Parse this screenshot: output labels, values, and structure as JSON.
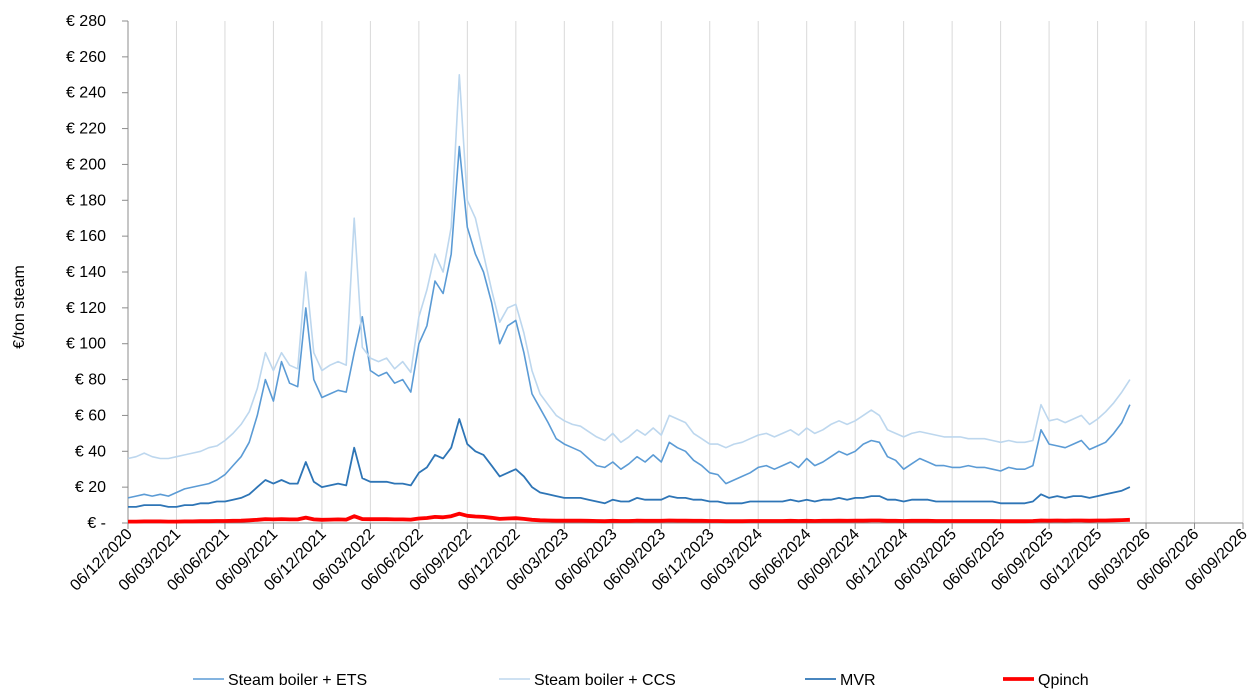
{
  "chart_data": {
    "type": "line",
    "title": "",
    "xlabel": "",
    "ylabel": "€/ton steam",
    "ylim": [
      0,
      280
    ],
    "y_ticks": [
      0,
      20,
      40,
      60,
      80,
      100,
      120,
      140,
      160,
      180,
      200,
      220,
      240,
      260,
      280
    ],
    "y_tick_labels": [
      "€ -",
      "€ 20",
      "€ 40",
      "€ 60",
      "€ 80",
      "€ 100",
      "€ 120",
      "€ 140",
      "€ 160",
      "€ 180",
      "€ 200",
      "€ 220",
      "€ 240",
      "€ 260",
      "€ 280"
    ],
    "x_tick_labels": [
      "06/12/2020",
      "06/03/2021",
      "06/06/2021",
      "06/09/2021",
      "06/12/2021",
      "06/03/2022",
      "06/06/2022",
      "06/09/2022",
      "06/12/2022",
      "06/03/2023",
      "06/06/2023",
      "06/09/2023",
      "06/12/2023",
      "06/03/2024",
      "06/06/2024",
      "06/09/2024",
      "06/12/2024",
      "06/03/2025",
      "06/06/2025",
      "06/09/2025",
      "06/12/2025",
      "06/03/2026",
      "06/06/2026",
      "06/09/2026"
    ],
    "grid": "vertical",
    "legend_position": "bottom",
    "x_step_months": 0.5,
    "series": [
      {
        "name": "Steam boiler + ETS",
        "color": "#5b9bd5",
        "width": 1.6,
        "values": [
          14,
          15,
          16,
          15,
          16,
          15,
          17,
          19,
          20,
          21,
          22,
          24,
          27,
          32,
          37,
          45,
          60,
          80,
          68,
          90,
          78,
          76,
          120,
          80,
          70,
          72,
          74,
          73,
          95,
          115,
          85,
          82,
          84,
          78,
          80,
          73,
          100,
          110,
          135,
          128,
          150,
          210,
          165,
          150,
          140,
          123,
          100,
          110,
          113,
          95,
          72,
          64,
          56,
          47,
          44,
          42,
          40,
          36,
          32,
          31,
          34,
          30,
          33,
          37,
          34,
          38,
          34,
          45,
          42,
          40,
          35,
          32,
          28,
          27,
          22,
          24,
          26,
          28,
          31,
          32,
          30,
          32,
          34,
          31,
          36,
          32,
          34,
          37,
          40,
          38,
          40,
          44,
          46,
          45,
          37,
          35,
          30,
          33,
          36,
          34,
          32,
          32,
          31,
          31,
          32,
          31,
          31,
          30,
          29,
          31,
          30,
          30,
          32,
          52,
          44,
          43,
          42,
          44,
          46,
          41,
          43,
          45,
          50,
          56,
          66
        ]
      },
      {
        "name": "Steam boiler + CCS",
        "color": "#bdd7ee",
        "width": 1.6,
        "values": [
          36,
          37,
          39,
          37,
          36,
          36,
          37,
          38,
          39,
          40,
          42,
          43,
          46,
          50,
          55,
          62,
          75,
          95,
          85,
          95,
          88,
          86,
          140,
          95,
          85,
          88,
          90,
          88,
          170,
          98,
          92,
          90,
          92,
          86,
          90,
          84,
          115,
          130,
          150,
          140,
          165,
          250,
          180,
          170,
          150,
          130,
          112,
          120,
          122,
          106,
          85,
          72,
          66,
          60,
          57,
          55,
          54,
          51,
          48,
          46,
          50,
          45,
          48,
          52,
          49,
          53,
          49,
          60,
          58,
          56,
          50,
          47,
          44,
          44,
          42,
          44,
          45,
          47,
          49,
          50,
          48,
          50,
          52,
          49,
          53,
          50,
          52,
          55,
          57,
          55,
          57,
          60,
          63,
          60,
          52,
          50,
          48,
          50,
          51,
          50,
          49,
          48,
          48,
          48,
          47,
          47,
          47,
          46,
          45,
          46,
          45,
          45,
          46,
          66,
          57,
          58,
          56,
          58,
          60,
          55,
          58,
          62,
          67,
          73,
          80
        ]
      },
      {
        "name": "MVR",
        "color": "#2e75b6",
        "width": 1.8,
        "values": [
          9,
          9,
          10,
          10,
          10,
          9,
          9,
          10,
          10,
          11,
          11,
          12,
          12,
          13,
          14,
          16,
          20,
          24,
          22,
          24,
          22,
          22,
          34,
          23,
          20,
          21,
          22,
          21,
          42,
          25,
          23,
          23,
          23,
          22,
          22,
          21,
          28,
          31,
          38,
          36,
          42,
          58,
          44,
          40,
          38,
          32,
          26,
          28,
          30,
          26,
          20,
          17,
          16,
          15,
          14,
          14,
          14,
          13,
          12,
          11,
          13,
          12,
          12,
          14,
          13,
          13,
          13,
          15,
          14,
          14,
          13,
          13,
          12,
          12,
          11,
          11,
          11,
          12,
          12,
          12,
          12,
          12,
          13,
          12,
          13,
          12,
          13,
          13,
          14,
          13,
          14,
          14,
          15,
          15,
          13,
          13,
          12,
          13,
          13,
          13,
          12,
          12,
          12,
          12,
          12,
          12,
          12,
          12,
          11,
          11,
          11,
          11,
          12,
          16,
          14,
          15,
          14,
          15,
          15,
          14,
          15,
          16,
          17,
          18,
          20
        ]
      },
      {
        "name": "Qpinch",
        "color": "#ff0000",
        "width": 3.8,
        "values": [
          0.8,
          0.8,
          0.9,
          0.9,
          0.9,
          0.8,
          0.8,
          0.9,
          0.9,
          1,
          1,
          1.1,
          1.1,
          1.2,
          1.3,
          1.5,
          1.8,
          2.2,
          2,
          2.2,
          2,
          2,
          3,
          2,
          1.8,
          1.9,
          2,
          1.9,
          3.8,
          2.2,
          2.1,
          2.1,
          2.1,
          2,
          2,
          1.9,
          2.5,
          2.8,
          3.4,
          3.2,
          3.8,
          5.2,
          4,
          3.6,
          3.4,
          2.9,
          2.3,
          2.5,
          2.7,
          2.3,
          1.8,
          1.5,
          1.4,
          1.3,
          1.3,
          1.3,
          1.3,
          1.2,
          1.1,
          1,
          1.2,
          1.1,
          1.1,
          1.3,
          1.2,
          1.2,
          1.2,
          1.4,
          1.3,
          1.3,
          1.2,
          1.2,
          1.1,
          1.1,
          1,
          1,
          1,
          1.1,
          1.1,
          1.1,
          1.1,
          1.1,
          1.2,
          1.1,
          1.2,
          1.1,
          1.2,
          1.2,
          1.3,
          1.2,
          1.3,
          1.3,
          1.4,
          1.4,
          1.2,
          1.2,
          1.1,
          1.2,
          1.2,
          1.2,
          1.1,
          1.1,
          1.1,
          1.1,
          1.1,
          1.1,
          1.1,
          1.1,
          1,
          1,
          1,
          1,
          1.1,
          1.4,
          1.3,
          1.4,
          1.3,
          1.4,
          1.4,
          1.3,
          1.4,
          1.4,
          1.5,
          1.6,
          1.8
        ]
      }
    ]
  }
}
